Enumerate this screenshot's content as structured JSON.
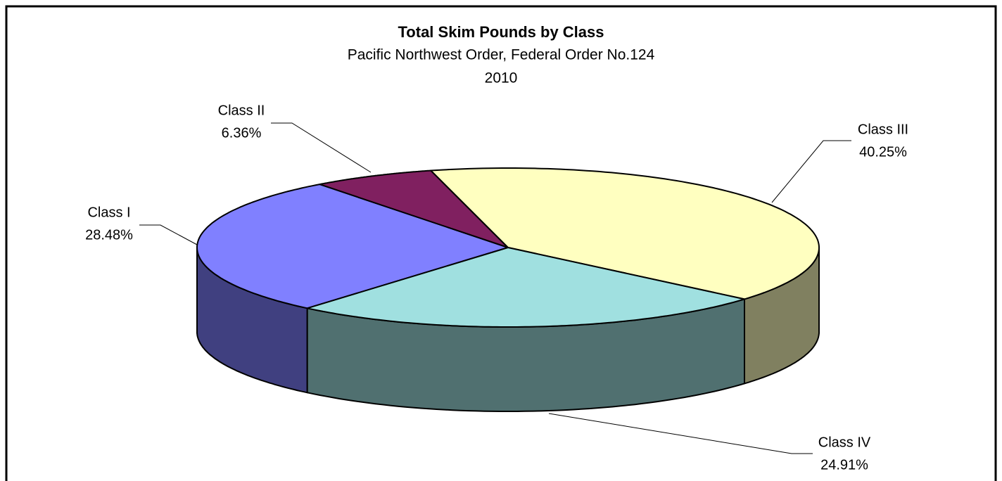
{
  "chart_data": {
    "type": "pie3d",
    "title": "Total Skim Pounds by Class",
    "subtitle": [
      "Pacific Northwest Order, Federal Order No.124",
      "2010"
    ],
    "categories": [
      "Class I",
      "Class II",
      "Class III",
      "Class IV"
    ],
    "values": [
      28.48,
      6.36,
      40.25,
      24.91
    ],
    "value_labels": [
      "28.48%",
      "6.36%",
      "40.25%",
      "24.91%"
    ],
    "colors": [
      "#8080ff",
      "#802060",
      "#ffffc0",
      "#a0e0e0"
    ]
  }
}
